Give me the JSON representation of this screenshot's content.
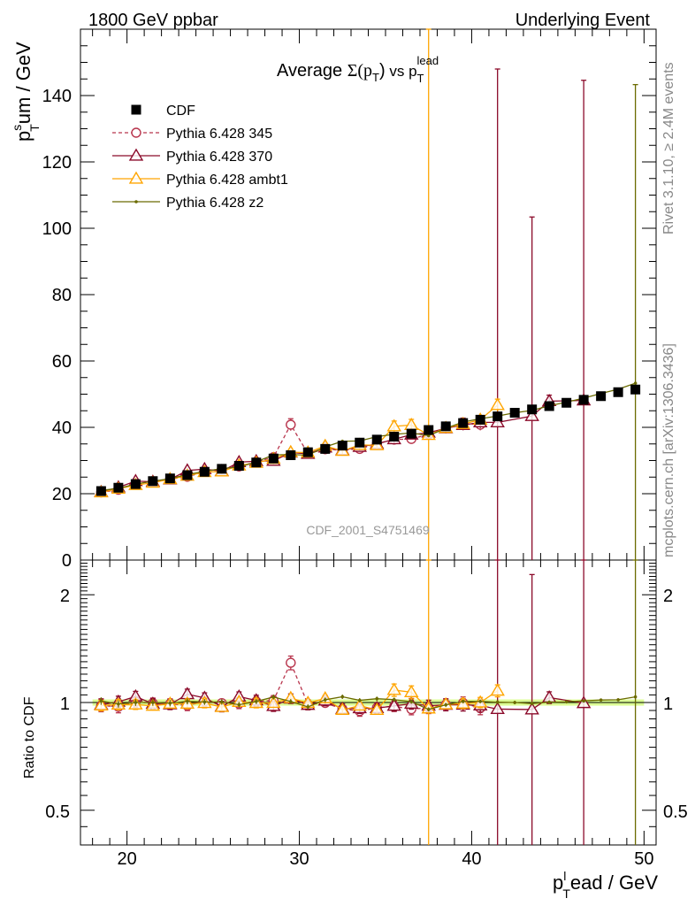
{
  "header": {
    "left": "1800 GeV ppbar",
    "right": "Underlying Event"
  },
  "side_labels": {
    "rivet": "Rivet 3.1.10, ≥ 2.4M events",
    "mcplots": "mcplots.cern.ch [arXiv:1306.3436]"
  },
  "chart_data": [
    {
      "type": "line",
      "panel": "main",
      "title": "Average Σ(p_T) vs p_T^lead",
      "title_parts": {
        "a": "Average ",
        "sigma": "Σ(p",
        "t": "T",
        "close": ")",
        "vs": " vs p",
        "t2": "T",
        "lead": "lead"
      },
      "ylabel": {
        "p": "p",
        "s": "s",
        "t": "T",
        "rest": "um / GeV"
      },
      "xlabel": {
        "p": "p",
        "l": "l",
        "t": "T",
        "rest": "ead / GeV"
      },
      "xlim": [
        17.3,
        50.7
      ],
      "ylim": [
        0,
        160
      ],
      "yticks": [
        0,
        20,
        40,
        60,
        80,
        100,
        120,
        140
      ],
      "xticks": [
        20,
        30,
        40,
        50
      ],
      "watermark": "CDF_2001_S4751469",
      "legend_position": "top-left",
      "x": [
        18.5,
        19.5,
        20.5,
        21.5,
        22.5,
        23.5,
        24.5,
        25.5,
        26.5,
        27.5,
        28.5,
        29.5,
        30.5,
        31.5,
        32.5,
        33.5,
        34.5,
        35.5,
        36.5,
        37.5,
        38.5,
        39.5,
        40.5,
        41.5,
        42.5,
        43.5,
        44.5,
        45.5,
        46.5,
        47.5,
        48.5,
        49.5
      ],
      "series": [
        {
          "name": "CDF",
          "style": "data",
          "color": "#000000",
          "values": [
            20.8,
            21.8,
            22.9,
            23.8,
            24.6,
            25.6,
            26.6,
            27.5,
            28.4,
            29.4,
            30.6,
            31.6,
            32.5,
            33.5,
            34.5,
            35.4,
            36.3,
            37.2,
            38.1,
            39.2,
            40.3,
            41.3,
            42.3,
            43.3,
            44.4,
            45.4,
            46.4,
            47.4,
            48.3,
            49.4,
            50.6,
            51.4
          ],
          "errors": [
            0.5,
            0.5,
            0.5,
            0.5,
            0.5,
            0.5,
            0.5,
            0.5,
            0.5,
            0.5,
            0.5,
            0.5,
            0.5,
            0.5,
            0.5,
            0.5,
            0.5,
            0.5,
            0.6,
            0.6,
            0.6,
            0.6,
            0.6,
            0.7,
            0.7,
            0.7,
            0.7,
            0.8,
            0.8,
            0.8,
            0.9,
            0.9
          ]
        },
        {
          "name": "Pythia 6.428 345",
          "style": "open-circle-dashed",
          "color": "#b8344c",
          "values": [
            20.4,
            21.2,
            23.0,
            23.7,
            24.4,
            25.1,
            26.8,
            27.4,
            28.2,
            29.6,
            31.0,
            40.8,
            32.1,
            33.4,
            33.1,
            33.5,
            35.1,
            36.3,
            36.5,
            37.9,
            39.8,
            41.2,
            40.8,
            null,
            null,
            null,
            null,
            null,
            null,
            null,
            null,
            null
          ],
          "errors": [
            0.8,
            0.8,
            0.8,
            0.8,
            0.8,
            0.8,
            0.8,
            0.8,
            0.9,
            0.9,
            1.0,
            1.8,
            1.0,
            1.0,
            1.0,
            1.1,
            1.1,
            1.2,
            1.3,
            1.4,
            1.5,
            1.6,
            1.7,
            null,
            null,
            null,
            null,
            null,
            null,
            null,
            null,
            null
          ]
        },
        {
          "name": "Pythia 6.428 370",
          "style": "open-triangle-solid",
          "color": "#8b0a2a",
          "values": [
            20.5,
            21.9,
            23.8,
            23.6,
            24.3,
            27.0,
            27.4,
            26.8,
            29.5,
            29.8,
            29.9,
            32.4,
            32.0,
            33.9,
            33.1,
            34.1,
            35.0,
            36.4,
            37.8,
            38.4,
            39.7,
            40.7,
            41.5,
            41.5,
            null,
            43.4,
            47.9,
            null,
            48.1,
            null,
            null,
            null
          ],
          "errors": [
            0.8,
            0.8,
            0.8,
            0.8,
            0.8,
            0.9,
            0.9,
            0.9,
            0.9,
            1.0,
            1.0,
            1.0,
            1.0,
            1.1,
            1.1,
            1.1,
            1.2,
            1.2,
            1.3,
            1.4,
            1.5,
            1.6,
            1.7,
            106.5,
            null,
            60.0,
            1.8,
            null,
            96.5,
            null,
            null,
            null
          ]
        },
        {
          "name": "Pythia 6.428 ambt1",
          "style": "open-triangle-solid",
          "color": "#ffa500",
          "values": [
            20.4,
            21.5,
            22.6,
            23.3,
            24.4,
            25.4,
            26.5,
            26.7,
            28.5,
            29.3,
            30.5,
            32.5,
            32.4,
            34.4,
            32.9,
            34.7,
            34.6,
            40.3,
            40.7,
            37.7,
            39.8,
            41.0,
            42.3,
            46.7,
            null,
            null,
            null,
            null,
            null,
            null,
            null,
            null
          ],
          "errors": [
            0.7,
            0.7,
            0.7,
            0.7,
            0.7,
            0.8,
            0.8,
            0.8,
            0.8,
            0.9,
            0.9,
            0.9,
            0.9,
            1.0,
            1.0,
            1.0,
            1.0,
            1.6,
            1.7,
            160.0,
            1.2,
            1.3,
            1.4,
            1.8,
            null,
            null,
            null,
            null,
            null,
            null,
            null,
            null
          ]
        },
        {
          "name": "Pythia 6.428 z2",
          "style": "dot-solid",
          "color": "#6b6b00",
          "values": [
            21.0,
            21.6,
            22.9,
            23.8,
            24.5,
            25.8,
            26.7,
            27.6,
            28.0,
            29.6,
            31.7,
            31.8,
            31.6,
            34.1,
            35.8,
            35.9,
            37.2,
            37.9,
            38.3,
            37.5,
            39.7,
            41.6,
            42.6,
            43.4,
            44.4,
            45.1,
            46.5,
            47.6,
            48.8,
            50.2,
            51.5,
            53.3
          ],
          "errors": [
            0.5,
            0.5,
            0.5,
            0.5,
            0.5,
            0.5,
            0.5,
            0.5,
            0.5,
            0.5,
            0.5,
            0.5,
            0.5,
            0.5,
            0.5,
            0.5,
            0.5,
            0.5,
            0.5,
            0.5,
            0.5,
            0.5,
            0.5,
            0.5,
            0.5,
            0.5,
            0.5,
            0.5,
            0.5,
            0.5,
            0.5,
            90.0
          ]
        }
      ]
    },
    {
      "type": "line",
      "panel": "ratio",
      "ylabel": "Ratio to CDF",
      "yscale": "log",
      "ylim": [
        0.4,
        2.5
      ],
      "yticks": [
        0.5,
        1,
        2
      ],
      "xlim": [
        17.3,
        50.7
      ],
      "band": {
        "color": "#ccff66",
        "relative_error": 0.02
      }
    }
  ]
}
